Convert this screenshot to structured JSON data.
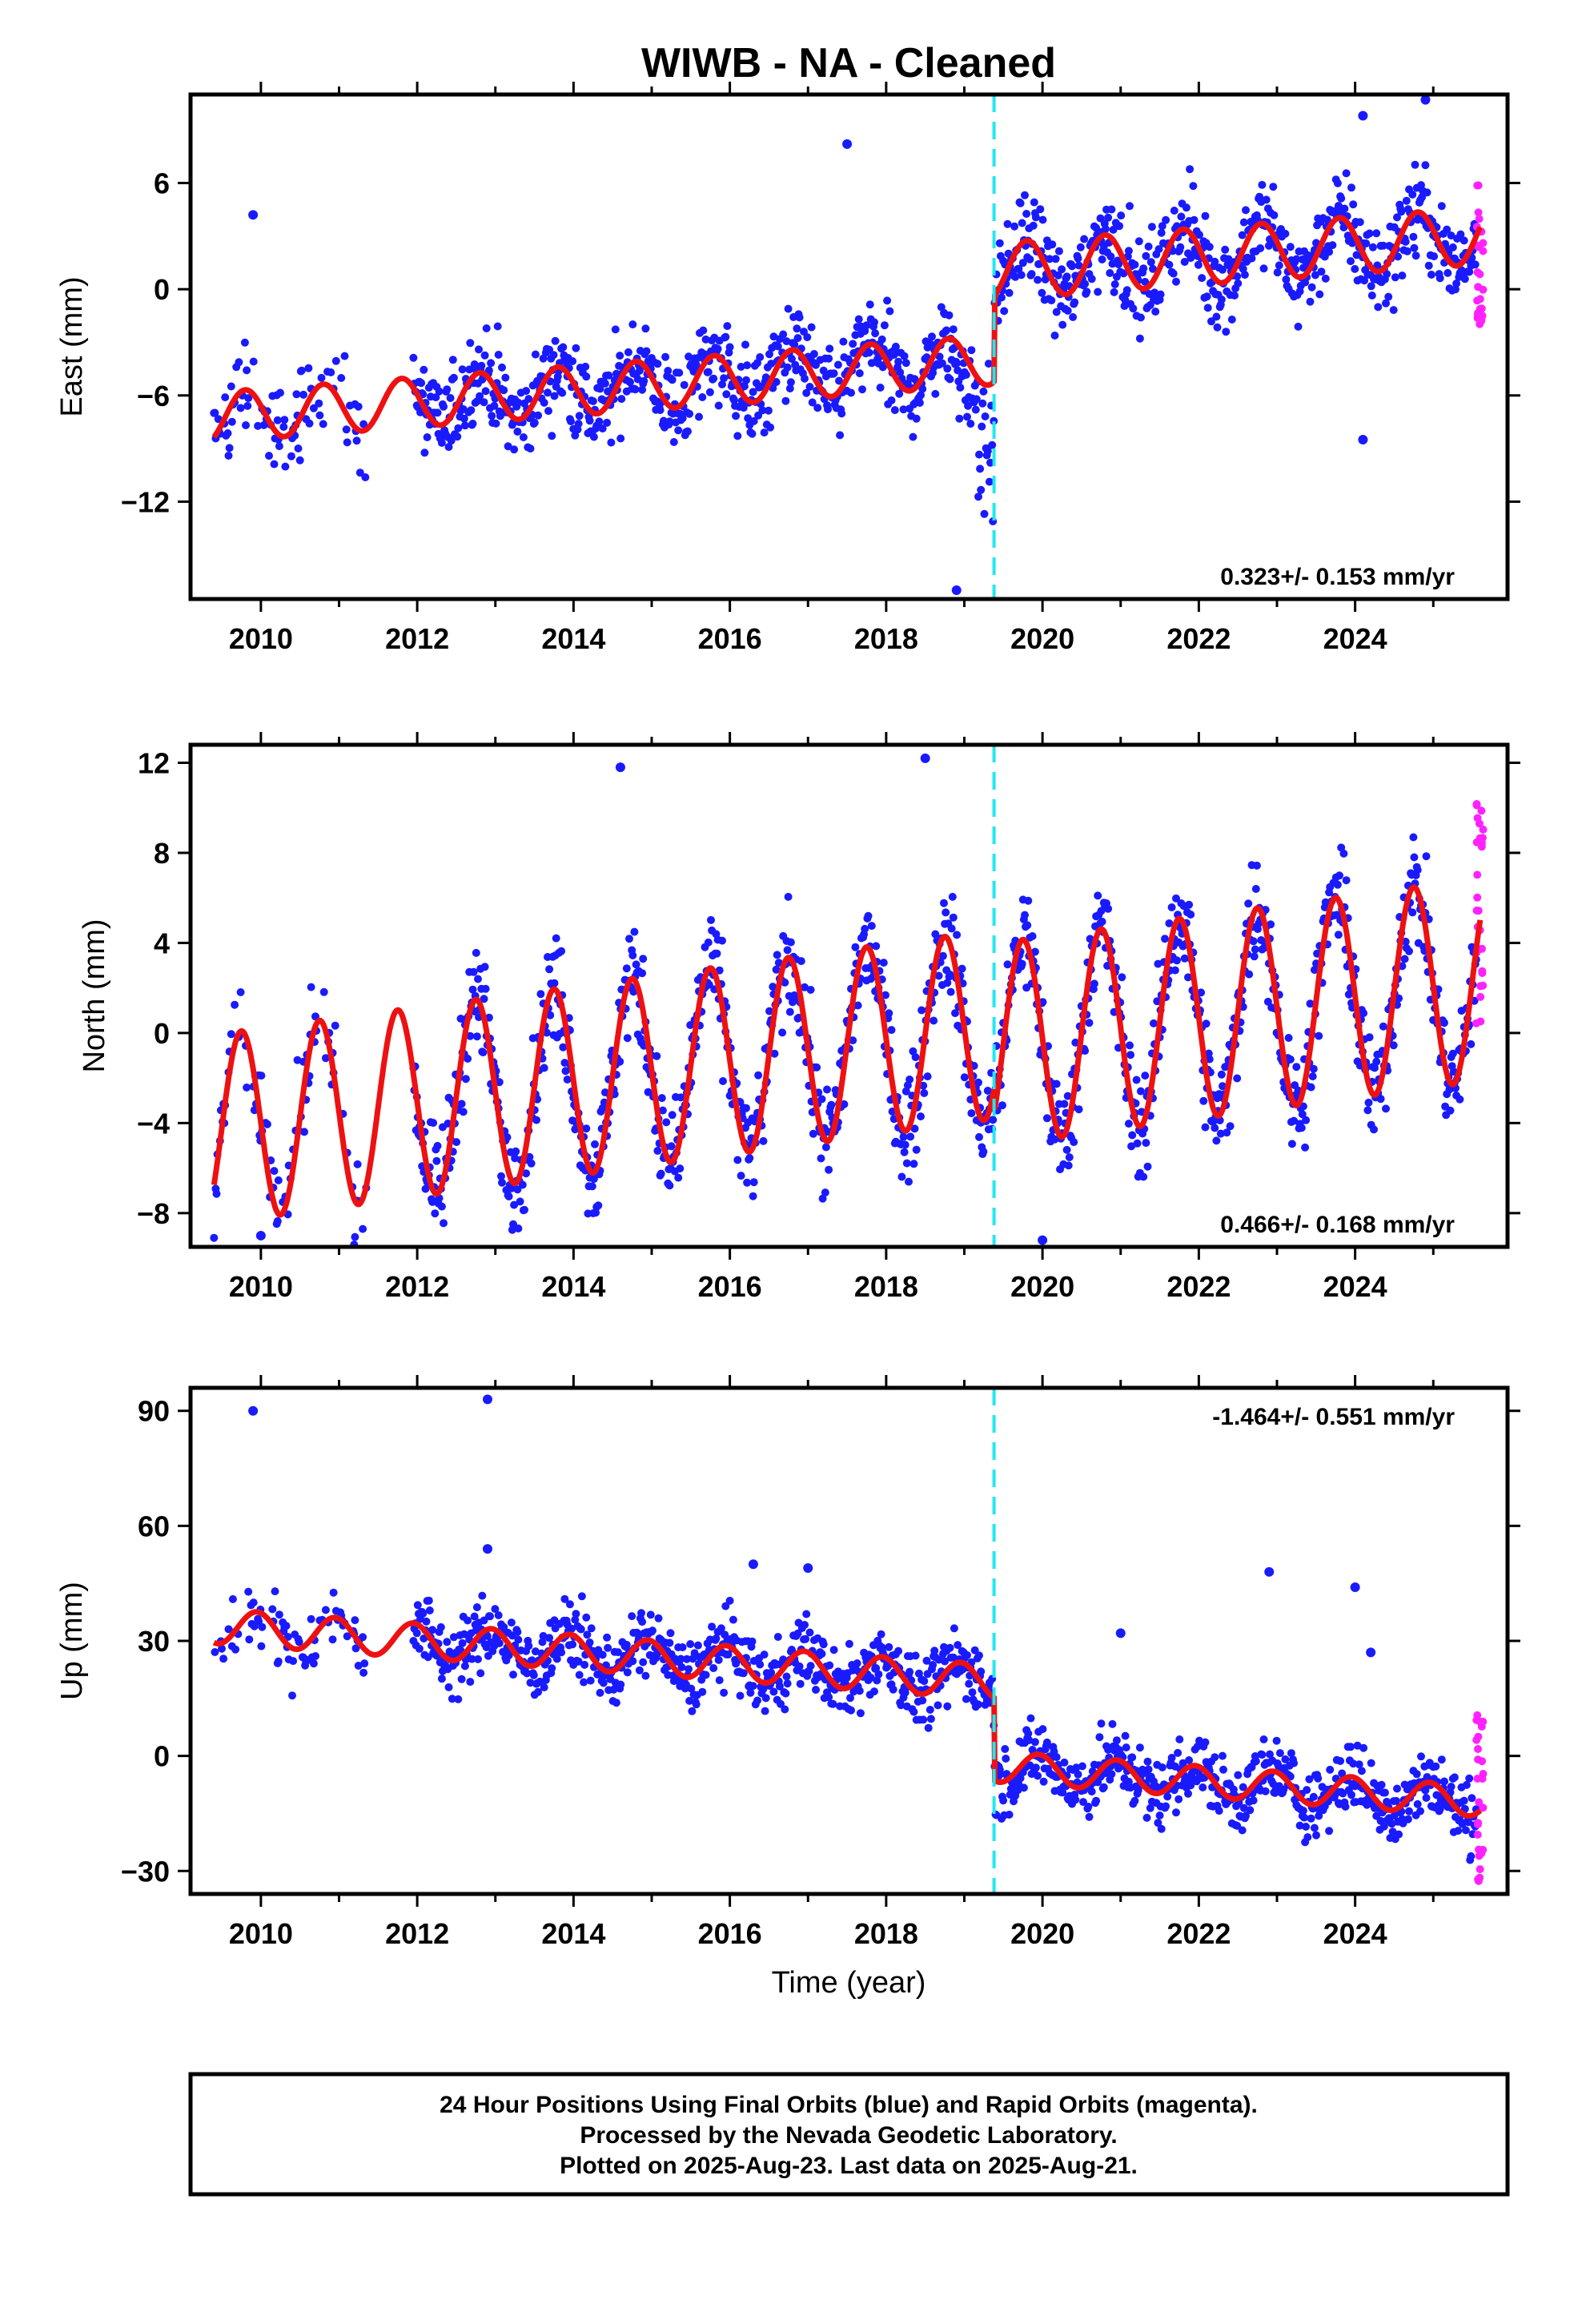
{
  "title": "WIWB  - NA - Cleaned",
  "colors": {
    "final_points": "#1a1aff",
    "rapid_points": "#ff22ff",
    "model_fit": "#ee1111",
    "offset_marker": "#22e8f0",
    "frame": "#000000"
  },
  "chart_data": [
    {
      "type": "scatter",
      "name": "east",
      "ylabel": "East (mm)",
      "xlabel": "",
      "xlim": [
        2009.1,
        2025.95
      ],
      "ylim": [
        -17.5,
        11
      ],
      "yticks": [
        -12,
        -6,
        0,
        6
      ],
      "xticks": [
        2010,
        2012,
        2014,
        2016,
        2018,
        2020,
        2022,
        2024
      ],
      "rate_label": "0.323+/- 0.153 mm/yr",
      "rate_position": "bottom-right",
      "offset_year": 2019.38,
      "model": {
        "before": {
          "a": -4.6,
          "rate": 0.323,
          "amp": 1.4,
          "phase": 0.55
        },
        "after": {
          "a": 0.4,
          "rate": 0.323,
          "amp": 1.6,
          "phase": 0.55
        }
      },
      "final_data_range": [
        2009.4,
        2025.55
      ],
      "rapid_data_range": [
        2025.55,
        2025.64
      ],
      "rapid_values_range": [
        -2,
        6
      ],
      "scatter_sd": 1.3,
      "outliers": [
        [
          2009.9,
          4.2
        ],
        [
          2017.5,
          8.2
        ],
        [
          2024.1,
          9.8
        ],
        [
          2024.9,
          10.7
        ],
        [
          2024.1,
          -8.5
        ],
        [
          2018.9,
          -17.0
        ]
      ]
    },
    {
      "type": "scatter",
      "name": "north",
      "ylabel": "North (mm)",
      "xlabel": "",
      "xlim": [
        2009.1,
        2025.95
      ],
      "ylim": [
        -9.5,
        12.8
      ],
      "yticks": [
        -8,
        -4,
        0,
        4,
        8,
        12
      ],
      "xticks": [
        2010,
        2012,
        2014,
        2016,
        2018,
        2020,
        2022,
        2024
      ],
      "rate_label": "0.466+/- 0.168 mm/yr",
      "rate_position": "bottom-right",
      "offset_year": 2019.38,
      "model": {
        "before": {
          "a": -0.5,
          "rate": 0.466,
          "amp": 4.2,
          "phase": 0.5
        },
        "after": {
          "a": -1.4,
          "rate": 0.466,
          "amp": 4.5,
          "phase": 0.5
        }
      },
      "final_data_range": [
        2009.4,
        2025.55
      ],
      "rapid_data_range": [
        2025.55,
        2025.64
      ],
      "rapid_values_range": [
        -1,
        10.5
      ],
      "scatter_sd": 1.2,
      "outliers": [
        [
          2010.0,
          -9.0
        ],
        [
          2018.5,
          12.2
        ],
        [
          2014.6,
          11.8
        ],
        [
          2020.0,
          -9.2
        ]
      ]
    },
    {
      "type": "scatter",
      "name": "up",
      "ylabel": "Up (mm)",
      "xlabel": "Time (year)",
      "xlim": [
        2009.1,
        2025.95
      ],
      "ylim": [
        -36,
        96
      ],
      "yticks": [
        -30,
        0,
        30,
        60,
        90
      ],
      "xticks": [
        2010,
        2012,
        2014,
        2016,
        2018,
        2020,
        2022,
        2024
      ],
      "rate_label": "-1.464+/- 0.551 mm/yr",
      "rate_position": "top-right",
      "offset_year": 2019.38,
      "model": {
        "before": {
          "a": 22.0,
          "rate": -1.464,
          "amp": 4.5,
          "phase": 0.7
        },
        "after": {
          "a": 0.0,
          "rate": -1.464,
          "amp": 4.0,
          "phase": 0.7
        }
      },
      "final_data_range": [
        2009.4,
        2025.55
      ],
      "rapid_data_range": [
        2025.55,
        2025.64
      ],
      "rapid_values_range": [
        -33,
        11
      ],
      "scatter_sd": 4.5,
      "outliers": [
        [
          2009.9,
          90
        ],
        [
          2012.9,
          93
        ],
        [
          2012.9,
          54
        ],
        [
          2016.3,
          50
        ],
        [
          2017.0,
          49
        ],
        [
          2022.9,
          48
        ],
        [
          2024.0,
          44
        ],
        [
          2021.0,
          32
        ],
        [
          2024.2,
          27
        ]
      ]
    }
  ],
  "footer": {
    "line1": "24 Hour Positions Using Final Orbits (blue) and Rapid Orbits (magenta).",
    "line2": "Processed by the Nevada Geodetic Laboratory.",
    "line3": "Plotted on 2025-Aug-23. Last data on 2025-Aug-21."
  }
}
